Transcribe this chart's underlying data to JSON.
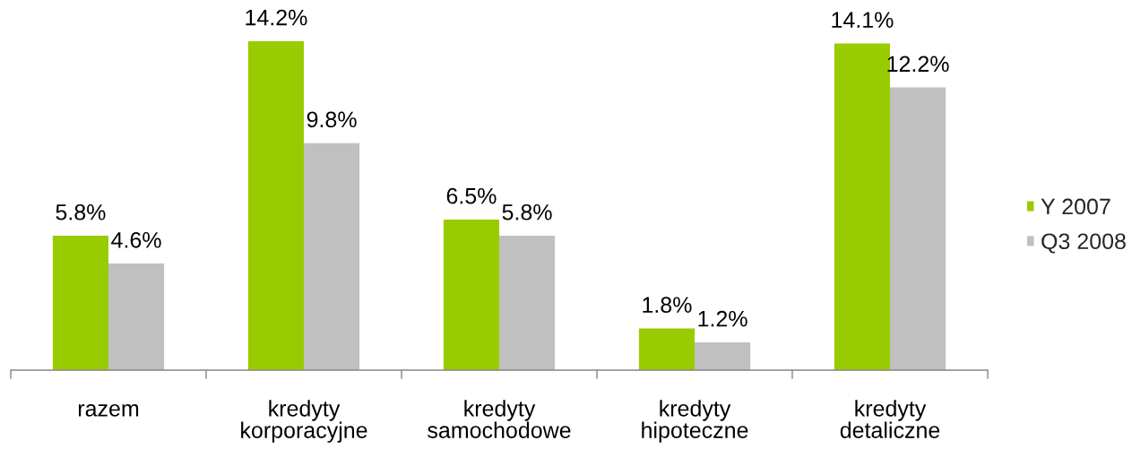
{
  "chart_data": {
    "type": "bar",
    "categories": [
      "razem",
      "kredyty\nkorporacyjne",
      "kredyty\nsamochodowe",
      "kredyty\nhipoteczne",
      "kredyty\ndetaliczne"
    ],
    "series": [
      {
        "name": "Y 2007",
        "color": "#99cc00",
        "values": [
          5.8,
          14.2,
          6.5,
          1.8,
          14.1
        ],
        "value_labels": [
          "5.8%",
          "14.2%",
          "6.5%",
          "1.8%",
          "14.1%"
        ]
      },
      {
        "name": "Q3 2008",
        "color": "#c0c0c0",
        "values": [
          4.6,
          9.8,
          5.8,
          1.2,
          12.2
        ],
        "value_labels": [
          "4.6%",
          "9.8%",
          "5.8%",
          "1.2%",
          "12.2%"
        ]
      }
    ],
    "legend": "right",
    "tick_labels": "x"
  }
}
